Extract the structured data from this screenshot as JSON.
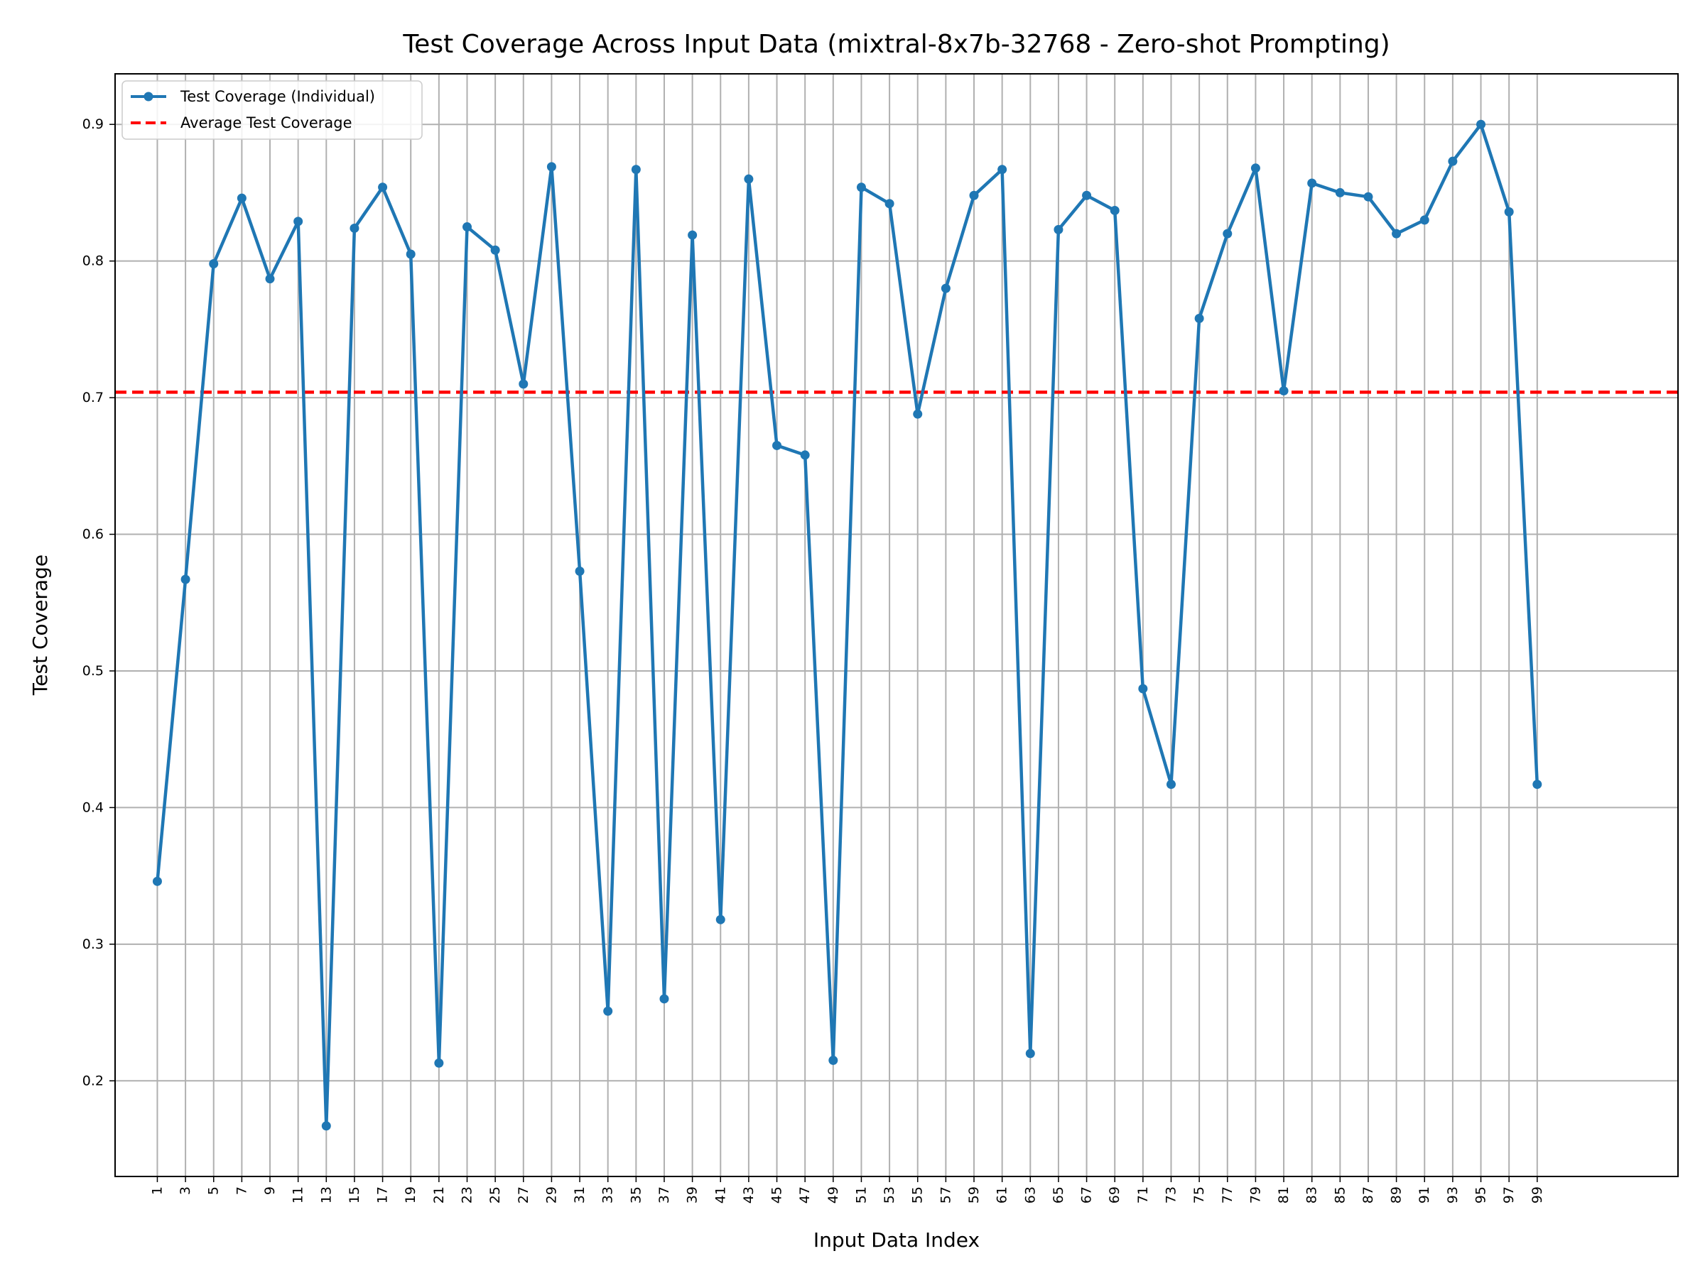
{
  "chart_data": {
    "type": "line",
    "title": "Test Coverage Across Input Data (mixtral-8x7b-32768 - Zero-shot Prompting)",
    "xlabel": "Input Data Index",
    "ylabel": "Test Coverage",
    "xlim": [
      -2,
      109
    ],
    "ylim": [
      0.13,
      0.937
    ],
    "x_ticks": [
      1,
      3,
      5,
      7,
      9,
      11,
      13,
      15,
      17,
      19,
      21,
      23,
      25,
      27,
      29,
      31,
      33,
      35,
      37,
      39,
      41,
      43,
      45,
      47,
      49,
      51,
      53,
      55,
      57,
      59,
      61,
      63,
      65,
      67,
      69,
      71,
      73,
      75,
      77,
      79,
      81,
      83,
      85,
      87,
      89,
      91,
      93,
      95,
      97,
      99
    ],
    "y_ticks": [
      0.2,
      0.3,
      0.4,
      0.5,
      0.6,
      0.7,
      0.8,
      0.9
    ],
    "y_tick_labels": [
      "0.2",
      "0.3",
      "0.4",
      "0.5",
      "0.6",
      "0.7",
      "0.8",
      "0.9"
    ],
    "grid": true,
    "legend_position": "top-left",
    "series": [
      {
        "name": "Test Coverage (Individual)",
        "color": "#1f77b4",
        "style": "solid-with-markers",
        "x": [
          1,
          3,
          5,
          7,
          9,
          11,
          13,
          15,
          17,
          19,
          21,
          23,
          25,
          27,
          29,
          31,
          33,
          35,
          37,
          39,
          41,
          43,
          45,
          47,
          49,
          51,
          53,
          55,
          57,
          59,
          61,
          63,
          65,
          67,
          69,
          71,
          73,
          75,
          77,
          79,
          81,
          83,
          85,
          87,
          89,
          91,
          93,
          95,
          97,
          99
        ],
        "y": [
          0.346,
          0.567,
          0.798,
          0.846,
          0.787,
          0.829,
          0.167,
          0.824,
          0.854,
          0.805,
          0.213,
          0.825,
          0.808,
          0.71,
          0.869,
          0.573,
          0.251,
          0.867,
          0.26,
          0.819,
          0.318,
          0.86,
          0.665,
          0.658,
          0.215,
          0.854,
          0.842,
          0.688,
          0.78,
          0.848,
          0.867,
          0.22,
          0.823,
          0.848,
          0.837,
          0.487,
          0.417,
          0.758,
          0.82,
          0.868,
          0.705,
          0.857,
          0.85,
          0.847,
          0.82,
          0.83,
          0.873,
          0.9,
          0.836,
          0.417
        ]
      },
      {
        "name": "Average Test Coverage",
        "color": "#ff0000",
        "style": "dashed-horizontal",
        "value": 0.704
      }
    ]
  }
}
